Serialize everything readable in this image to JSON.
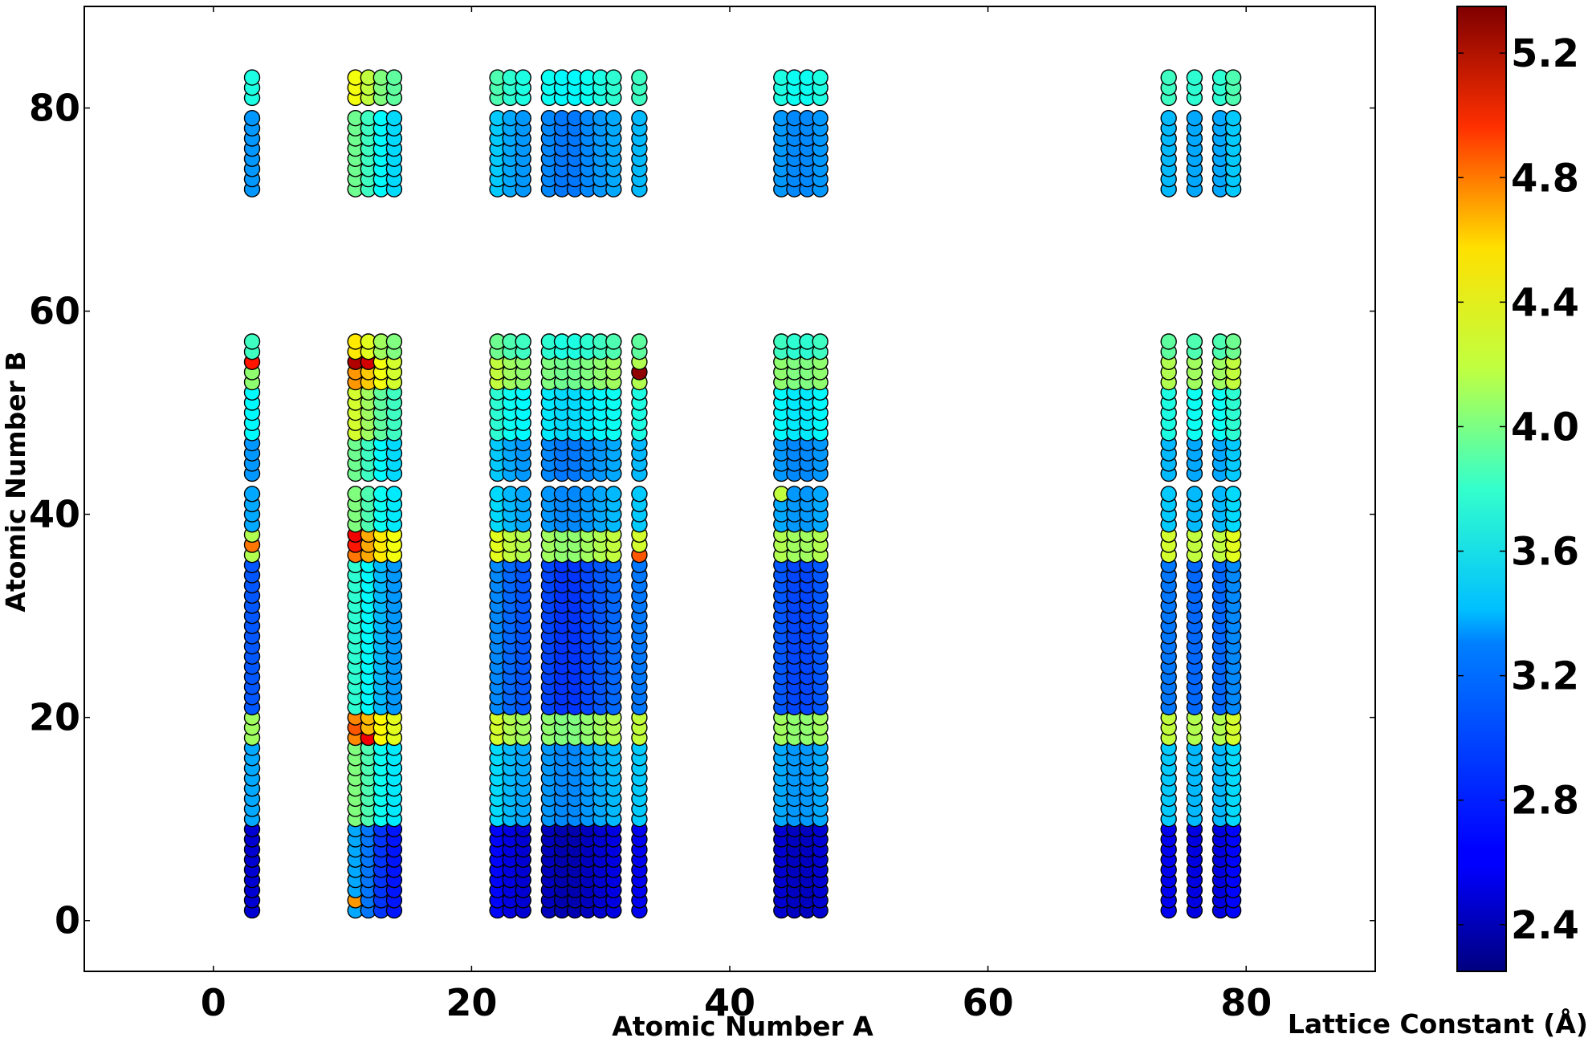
{
  "chart_data": {
    "type": "scatter",
    "xlabel": "Atomic Number A",
    "ylabel": "Atomic Number B",
    "xlim": [
      -10,
      90
    ],
    "ylim": [
      -5,
      90
    ],
    "x_ticks": [
      0,
      20,
      40,
      60,
      80
    ],
    "y_ticks": [
      0,
      20,
      40,
      60,
      80
    ],
    "grid": false,
    "colormap": "jet",
    "colorbar": {
      "label": "Lattice Constant (Å)",
      "range": [
        2.25,
        5.35
      ],
      "ticks": [
        2.4,
        2.8,
        3.2,
        3.6,
        4.0,
        4.4,
        4.8,
        5.2
      ],
      "tick_labels": [
        "2.4",
        "2.8",
        "3.2",
        "3.6",
        "4.0",
        "4.4",
        "4.8",
        "5.2"
      ]
    },
    "x_values_A": [
      3,
      11,
      12,
      13,
      14,
      22,
      23,
      24,
      26,
      27,
      28,
      29,
      30,
      31,
      33,
      44,
      45,
      46,
      47,
      74,
      76,
      78,
      79
    ],
    "y_ranges_B": [
      [
        1,
        9
      ],
      [
        10,
        17
      ],
      [
        18,
        20
      ],
      [
        21,
        35
      ],
      [
        36,
        38
      ],
      [
        39,
        42
      ],
      [
        44,
        47
      ],
      [
        48,
        52
      ],
      [
        53,
        55
      ],
      [
        56,
        57
      ],
      [
        72,
        79
      ],
      [
        81,
        83
      ]
    ],
    "column_base_lattice_constant": {
      "3": 3.05,
      "11": 3.7,
      "12": 3.55,
      "13": 3.35,
      "14": 3.25,
      "22": 3.2,
      "23": 3.1,
      "24": 3.05,
      "26": 3.0,
      "27": 2.95,
      "28": 2.95,
      "29": 3.0,
      "30": 3.05,
      "31": 3.1,
      "33": 3.15,
      "44": 3.05,
      "45": 3.0,
      "46": 3.0,
      "47": 3.05,
      "74": 3.15,
      "76": 3.1,
      "78": 3.1,
      "79": 3.2
    },
    "band_offset_lattice_constant": [
      -0.55,
      0.1,
      0.85,
      -0.15,
      0.9,
      0.1,
      0.05,
      0.35,
      0.8,
      0.55,
      0.05,
      0.45
    ],
    "notable_points": [
      {
        "a": 11,
        "b": 55,
        "lattice_constant": 5.2
      },
      {
        "a": 12,
        "b": 55,
        "lattice_constant": 5.1
      },
      {
        "a": 33,
        "b": 54,
        "lattice_constant": 5.3
      },
      {
        "a": 11,
        "b": 38,
        "lattice_constant": 5.0
      },
      {
        "a": 11,
        "b": 37,
        "lattice_constant": 4.9
      },
      {
        "a": 12,
        "b": 18,
        "lattice_constant": 5.0
      },
      {
        "a": 3,
        "b": 55,
        "lattice_constant": 4.9
      },
      {
        "a": 3,
        "b": 37,
        "lattice_constant": 4.6
      },
      {
        "a": 33,
        "b": 36,
        "lattice_constant": 4.7
      },
      {
        "a": 11,
        "b": 19,
        "lattice_constant": 4.7
      },
      {
        "a": 44,
        "b": 42,
        "lattice_constant": 4.0
      },
      {
        "a": 11,
        "b": 2,
        "lattice_constant": 4.5
      }
    ]
  }
}
